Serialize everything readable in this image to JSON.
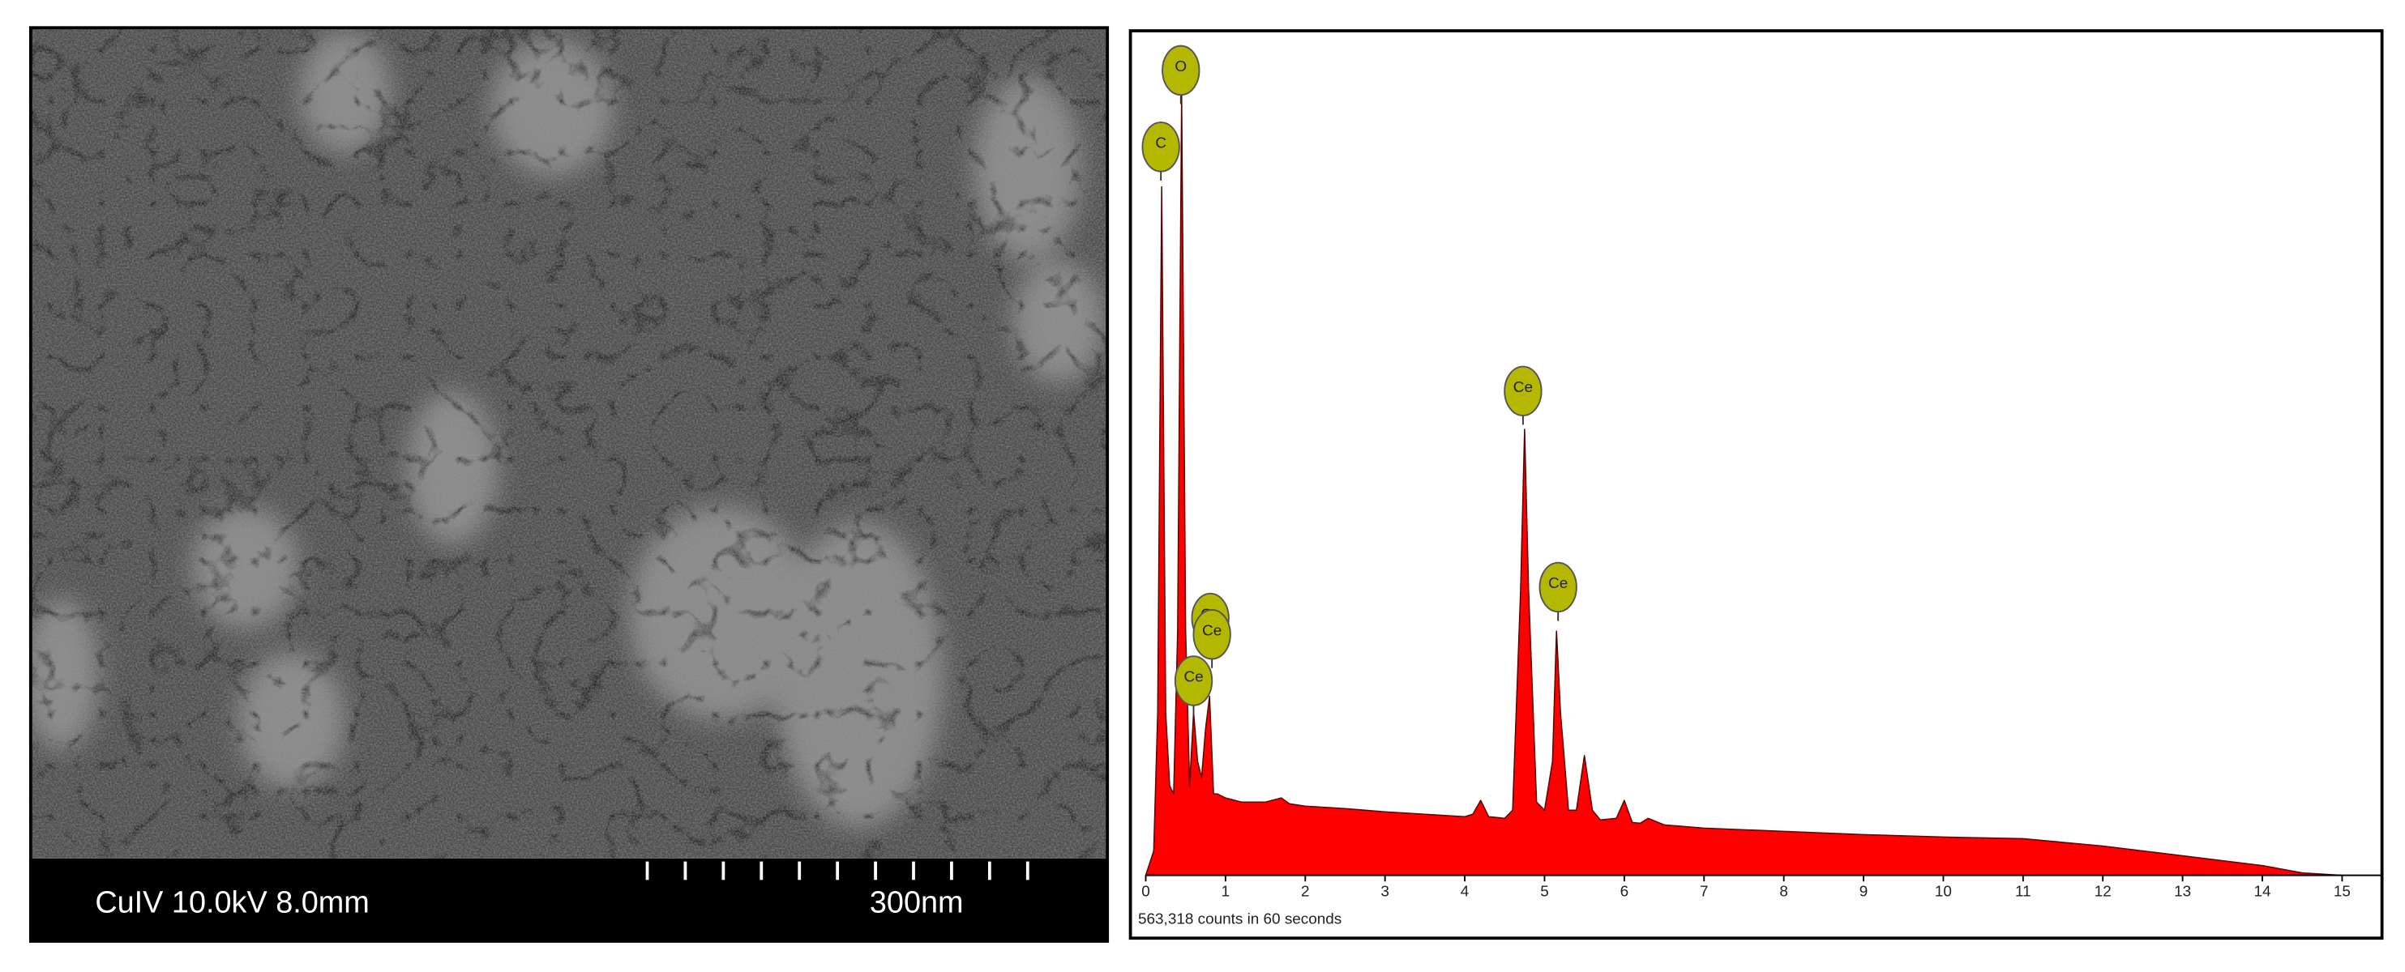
{
  "micrograph": {
    "label": "CuIV 10.0kV 8.0mm",
    "scale": "300nm"
  },
  "chart_data": {
    "type": "area",
    "caption": "563,318 counts in 60 seconds",
    "x": [
      0,
      0.1,
      0.15,
      0.2,
      0.25,
      0.3,
      0.35,
      0.4,
      0.45,
      0.5,
      0.55,
      0.6,
      0.65,
      0.7,
      0.75,
      0.8,
      0.85,
      0.9,
      1.0,
      1.2,
      1.5,
      1.7,
      1.8,
      2.0,
      2.5,
      3.0,
      3.5,
      4.0,
      4.1,
      4.2,
      4.3,
      4.5,
      4.6,
      4.7,
      4.75,
      4.8,
      4.9,
      5.0,
      5.1,
      5.15,
      5.2,
      5.3,
      5.4,
      5.5,
      5.6,
      5.7,
      5.9,
      6.0,
      6.1,
      6.2,
      6.3,
      6.5,
      7,
      8,
      9,
      10,
      11,
      12,
      13,
      14,
      14.5,
      15
    ],
    "values": [
      0,
      3,
      20,
      84.6,
      20,
      11,
      10,
      30,
      95.9,
      30,
      11,
      20,
      14,
      12,
      18,
      22,
      10,
      10,
      9.5,
      9,
      9,
      9.5,
      8.8,
      8.5,
      8.2,
      7.8,
      7.5,
      7.2,
      7.5,
      9.2,
      7.2,
      7,
      8,
      35,
      54.8,
      35,
      9,
      8,
      14,
      30,
      20,
      8,
      8,
      14.7,
      8,
      6.8,
      7,
      9.2,
      6.5,
      6.4,
      7,
      6.2,
      5.8,
      5.4,
      5,
      4.7,
      4.5,
      3.6,
      2.4,
      1.2,
      0.3,
      0
    ],
    "color": "#ff0000",
    "xlim": [
      0,
      15.5
    ],
    "xticks": [
      0,
      1,
      2,
      3,
      4,
      5,
      6,
      7,
      8,
      9,
      10,
      11,
      12,
      13,
      14,
      15
    ],
    "ylim": [
      0,
      100
    ],
    "peaks": [
      {
        "label": "C",
        "x": 0.19,
        "y": 89.5
      },
      {
        "label": "O",
        "x": 0.44,
        "y": 98.9
      },
      {
        "label": "Ce",
        "x": 0.81,
        "y": 31.6
      },
      {
        "label": "Ce",
        "x": 0.83,
        "y": 29.6
      },
      {
        "label": "Ce",
        "x": 0.6,
        "y": 23.9
      },
      {
        "label": "Ce",
        "x": 4.73,
        "y": 59.5
      },
      {
        "label": "Ce",
        "x": 5.17,
        "y": 35.4
      }
    ]
  }
}
